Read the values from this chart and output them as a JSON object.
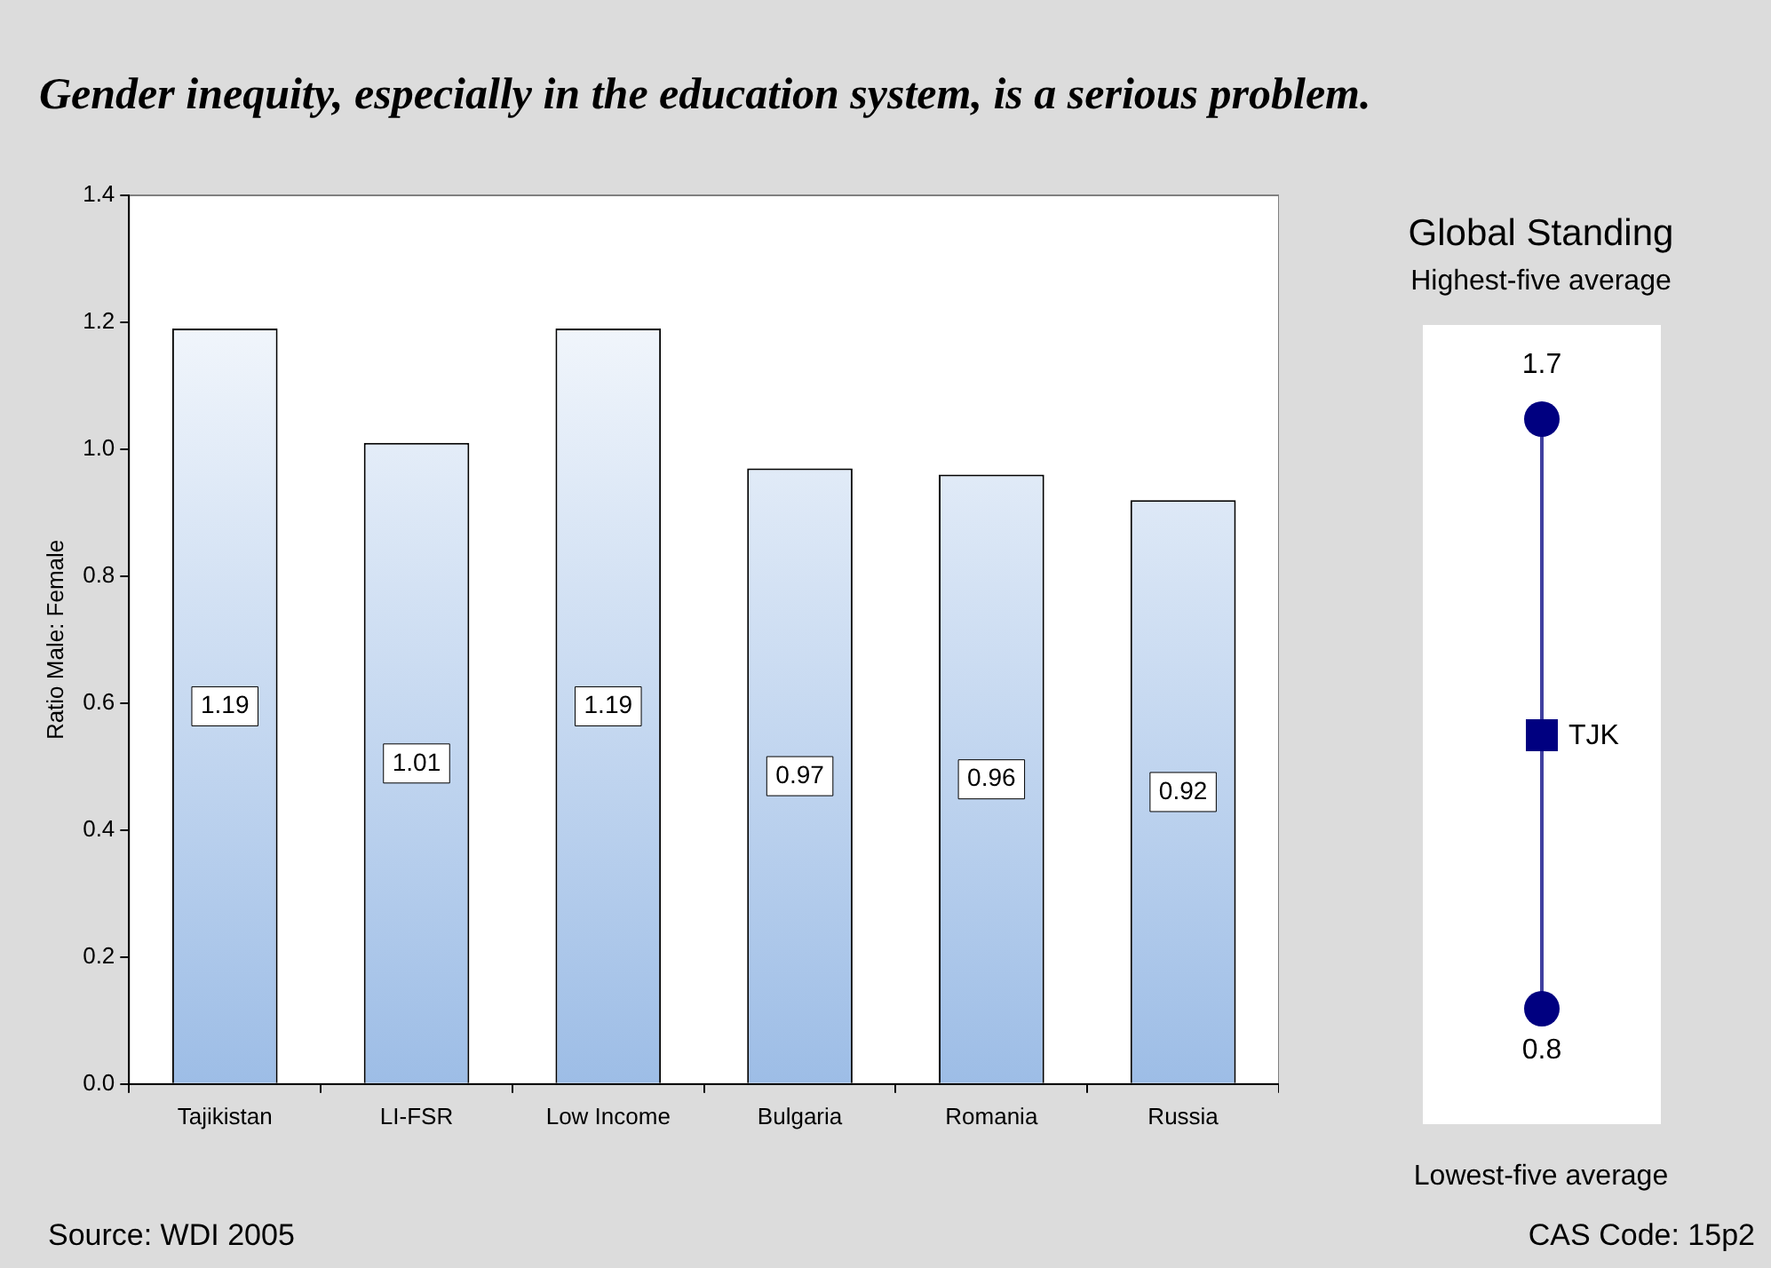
{
  "chart_data": [
    {
      "type": "bar",
      "title": "Gender inequity, especially in the education system, is a serious problem.",
      "ylabel": "Ratio Male: Female",
      "categories": [
        "Tajikistan",
        "LI-FSR",
        "Low Income",
        "Bulgaria",
        "Romania",
        "Russia"
      ],
      "values": [
        1.19,
        1.01,
        1.19,
        0.97,
        0.96,
        0.92
      ],
      "color": "#9dbde6",
      "data_labels": true,
      "ylim": [
        0,
        1.4
      ],
      "yticks": [
        {
          "value": 0,
          "label": "0.0"
        },
        0.2,
        0.4,
        0.6,
        0.8,
        {
          "value": 1,
          "label": "1.0"
        },
        1.2,
        1.4
      ],
      "grid": false,
      "legend": false,
      "annotations": [
        "Source: WDI 2005",
        "CAS Code: 15p2"
      ]
    },
    {
      "type": "other",
      "title": "Global Standing",
      "subtitle": "Highest-five average",
      "xlabel": "Lowest-five average",
      "annotations": [
        "1.7",
        "TJK",
        "0.8"
      ]
    }
  ]
}
